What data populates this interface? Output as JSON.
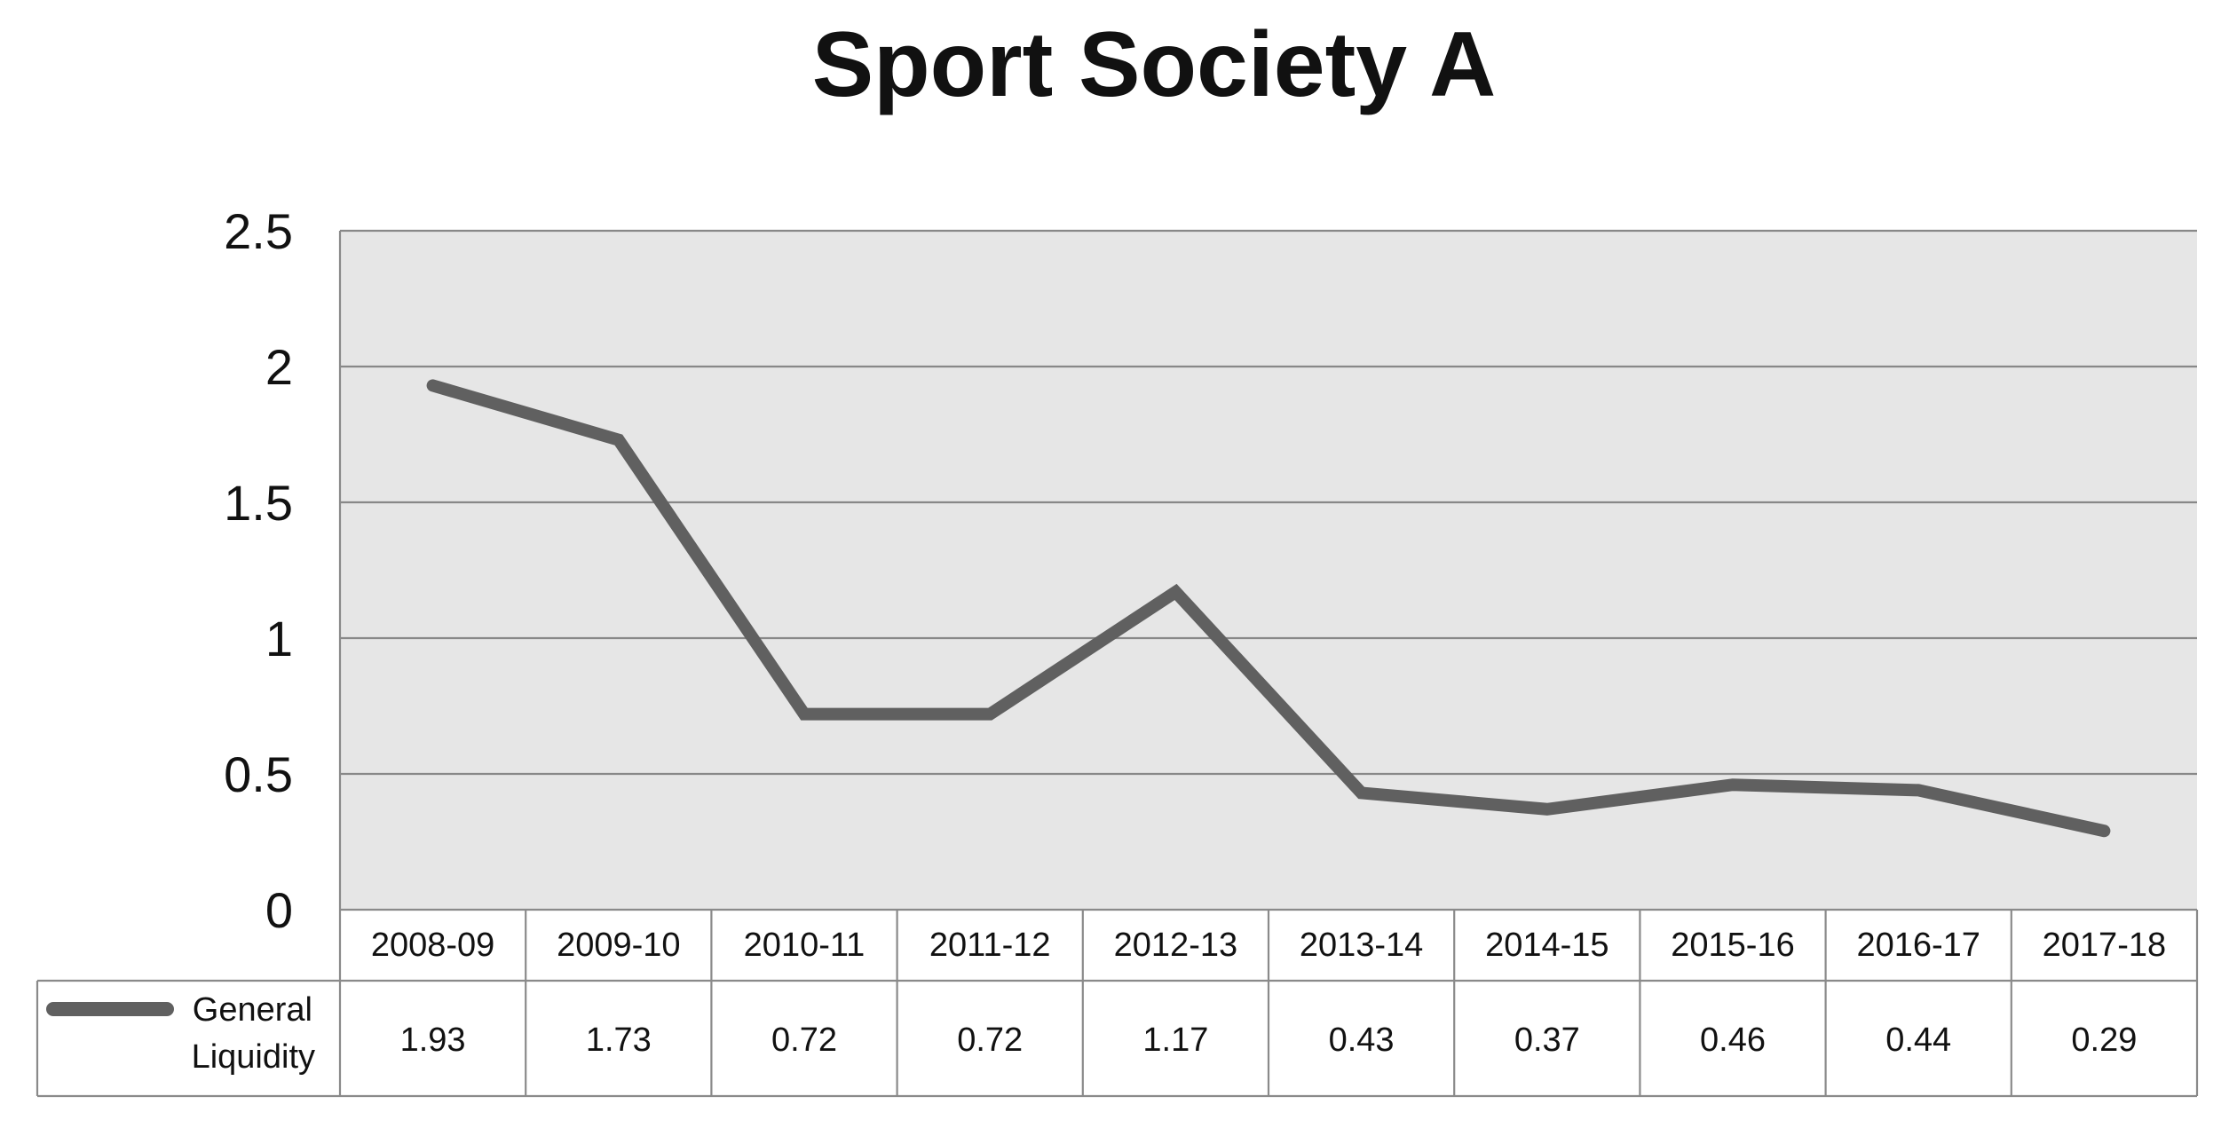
{
  "chart_data": {
    "type": "line",
    "title": "Sport Society A",
    "categories": [
      "2008-09",
      "2009-10",
      "2010-11",
      "2011-12",
      "2012-13",
      "2013-14",
      "2014-15",
      "2015-16",
      "2016-17",
      "2017-18"
    ],
    "series": [
      {
        "name": "General Liquidity",
        "name_lines": [
          "General",
          "Liquidity"
        ],
        "values": [
          1.93,
          1.73,
          0.72,
          0.72,
          1.17,
          0.43,
          0.37,
          0.46,
          0.44,
          0.29
        ],
        "value_labels": [
          "1.93",
          "1.73",
          "0.72",
          "0.72",
          "1.17",
          "0.43",
          "0.37",
          "0.46",
          "0.44",
          "0.29"
        ],
        "color": "#606060"
      }
    ],
    "ylim": [
      0,
      2.5
    ],
    "yticks": [
      0,
      0.5,
      1,
      1.5,
      2,
      2.5
    ],
    "ytick_labels": [
      "0",
      "0.5",
      "1",
      "1.5",
      "2",
      "2.5"
    ],
    "grid": true,
    "legend": "data-table-left",
    "colors": {
      "plot_background": "#e6e6e6",
      "gridline": "#888888",
      "table_border": "#8a8a8a"
    }
  }
}
